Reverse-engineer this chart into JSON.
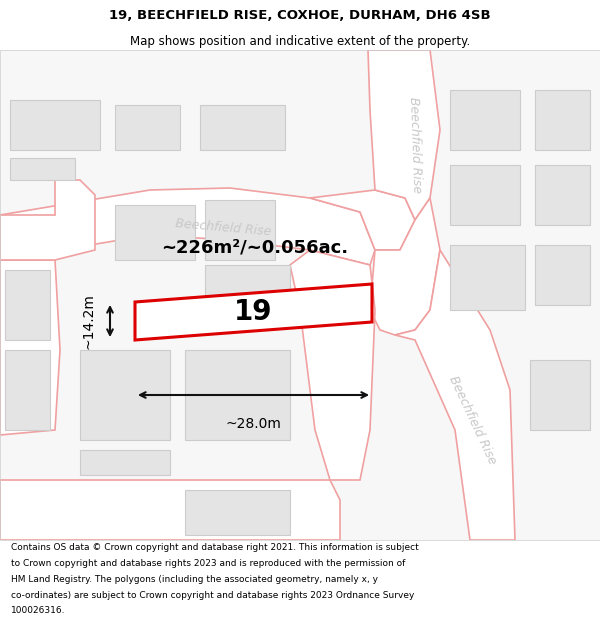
{
  "title_line1": "19, BEECHFIELD RISE, COXHOE, DURHAM, DH6 4SB",
  "title_line2": "Map shows position and indicative extent of the property.",
  "footer_lines": [
    "Contains OS data © Crown copyright and database right 2021. This information is subject",
    "to Crown copyright and database rights 2023 and is reproduced with the permission of",
    "HM Land Registry. The polygons (including the associated geometry, namely x, y",
    "co-ordinates) are subject to Crown copyright and database rights 2023 Ordnance Survey",
    "100026316."
  ],
  "area_label": "~226m²/~0.056ac.",
  "number_label": "19",
  "width_label": "~28.0m",
  "height_label": "~14.2m",
  "map_bg": "#f7f7f7",
  "road_color": "#f0a0a0",
  "road_fill": "#ffffff",
  "building_fill": "#e4e4e4",
  "building_edge": "#cccccc",
  "plot_edge_color": "#dd0000",
  "road_label_color": "#c0c0c0",
  "title_color": "#000000",
  "footer_color": "#000000",
  "dim_line_color": "#111111",
  "road_label_horiz": "Beechfield Rise",
  "road_label_vert1": "Beechfield Rise",
  "road_label_vert2": "Beechfield Rise"
}
